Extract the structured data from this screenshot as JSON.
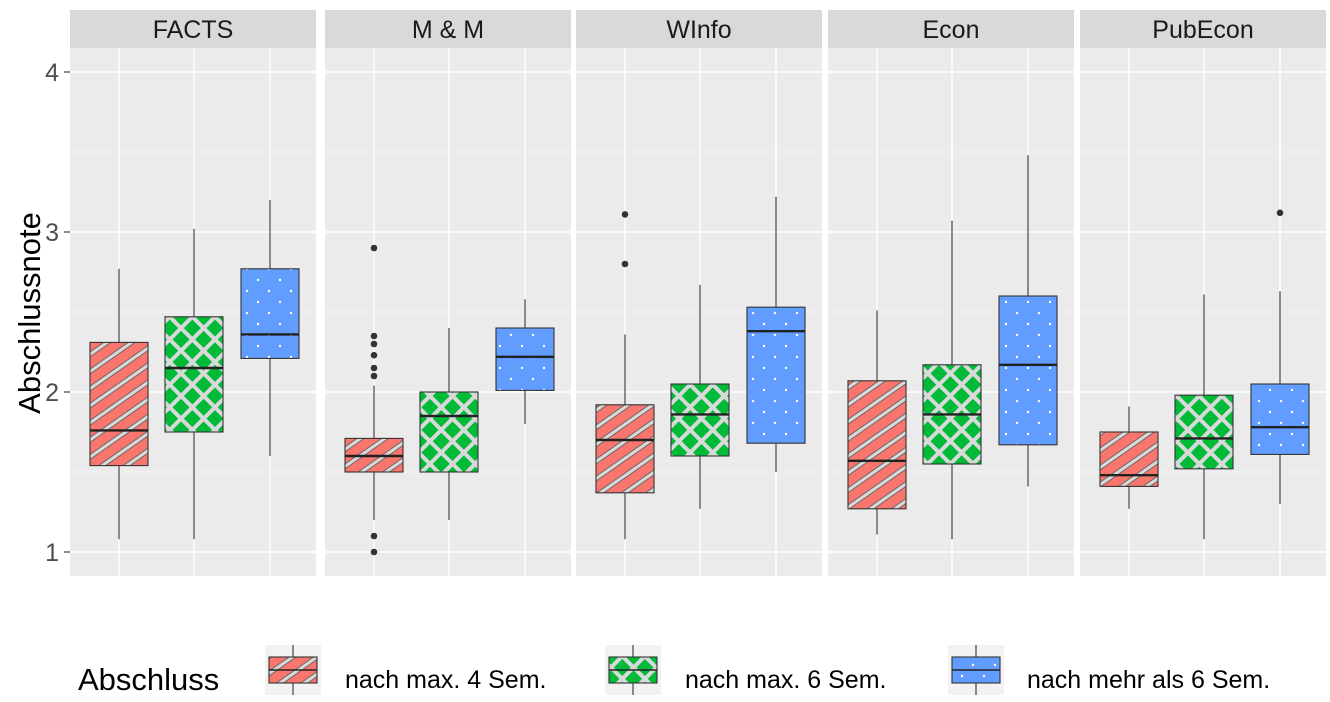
{
  "chart_data": {
    "type": "boxplot",
    "ylabel": "Abschlussnote",
    "ylim": [
      0.85,
      4.15
    ],
    "y_ticks": [
      "1",
      "2",
      "3",
      "4"
    ],
    "grid": true,
    "legend_position": "bottom",
    "legend": {
      "title": "Abschluss",
      "entries": [
        {
          "label": "nach max. 4 Sem.",
          "color": "#f8766d",
          "pattern": "diagonal-hatch"
        },
        {
          "label": "nach max. 6 Sem.",
          "color": "#00ba38",
          "pattern": "crosshatch"
        },
        {
          "label": "nach mehr als 6 Sem.",
          "color": "#619cff",
          "pattern": "dots"
        }
      ]
    },
    "panels": [
      {
        "label": "FACTS",
        "boxes": [
          {
            "group": 0,
            "whisker_low": 1.08,
            "q1": 1.54,
            "median": 1.76,
            "q3": 2.31,
            "whisker_high": 2.77,
            "outliers": []
          },
          {
            "group": 1,
            "whisker_low": 1.08,
            "q1": 1.75,
            "median": 2.15,
            "q3": 2.47,
            "whisker_high": 3.02,
            "outliers": []
          },
          {
            "group": 2,
            "whisker_low": 1.6,
            "q1": 2.21,
            "median": 2.36,
            "q3": 2.77,
            "whisker_high": 3.2,
            "outliers": []
          }
        ]
      },
      {
        "label": "M & M",
        "boxes": [
          {
            "group": 0,
            "whisker_low": 1.2,
            "q1": 1.5,
            "median": 1.6,
            "q3": 1.71,
            "whisker_high": 2.04,
            "outliers": [
              2.1,
              2.15,
              2.23,
              2.3,
              2.35,
              2.9,
              1.1,
              1.0
            ]
          },
          {
            "group": 1,
            "whisker_low": 1.2,
            "q1": 1.5,
            "median": 1.85,
            "q3": 2.0,
            "whisker_high": 2.4,
            "outliers": []
          },
          {
            "group": 2,
            "whisker_low": 1.8,
            "q1": 2.01,
            "median": 2.22,
            "q3": 2.4,
            "whisker_high": 2.58,
            "outliers": []
          }
        ]
      },
      {
        "label": "WInfo",
        "boxes": [
          {
            "group": 0,
            "whisker_low": 1.08,
            "q1": 1.37,
            "median": 1.7,
            "q3": 1.92,
            "whisker_high": 2.36,
            "outliers": [
              2.8,
              3.11
            ]
          },
          {
            "group": 1,
            "whisker_low": 1.27,
            "q1": 1.6,
            "median": 1.86,
            "q3": 2.05,
            "whisker_high": 2.67,
            "outliers": []
          },
          {
            "group": 2,
            "whisker_low": 1.5,
            "q1": 1.68,
            "median": 2.38,
            "q3": 2.53,
            "whisker_high": 3.22,
            "outliers": []
          }
        ]
      },
      {
        "label": "Econ",
        "boxes": [
          {
            "group": 0,
            "whisker_low": 1.11,
            "q1": 1.27,
            "median": 1.57,
            "q3": 2.07,
            "whisker_high": 2.51,
            "outliers": []
          },
          {
            "group": 1,
            "whisker_low": 1.08,
            "q1": 1.55,
            "median": 1.86,
            "q3": 2.17,
            "whisker_high": 3.07,
            "outliers": []
          },
          {
            "group": 2,
            "whisker_low": 1.41,
            "q1": 1.67,
            "median": 2.17,
            "q3": 2.6,
            "whisker_high": 3.48,
            "outliers": []
          }
        ]
      },
      {
        "label": "PubEcon",
        "boxes": [
          {
            "group": 0,
            "whisker_low": 1.27,
            "q1": 1.41,
            "median": 1.48,
            "q3": 1.75,
            "whisker_high": 1.91,
            "outliers": []
          },
          {
            "group": 1,
            "whisker_low": 1.08,
            "q1": 1.52,
            "median": 1.71,
            "q3": 1.98,
            "whisker_high": 2.61,
            "outliers": []
          },
          {
            "group": 2,
            "whisker_low": 1.3,
            "q1": 1.61,
            "median": 1.78,
            "q3": 2.05,
            "whisker_high": 2.63,
            "outliers": [
              3.12
            ]
          }
        ]
      }
    ]
  }
}
